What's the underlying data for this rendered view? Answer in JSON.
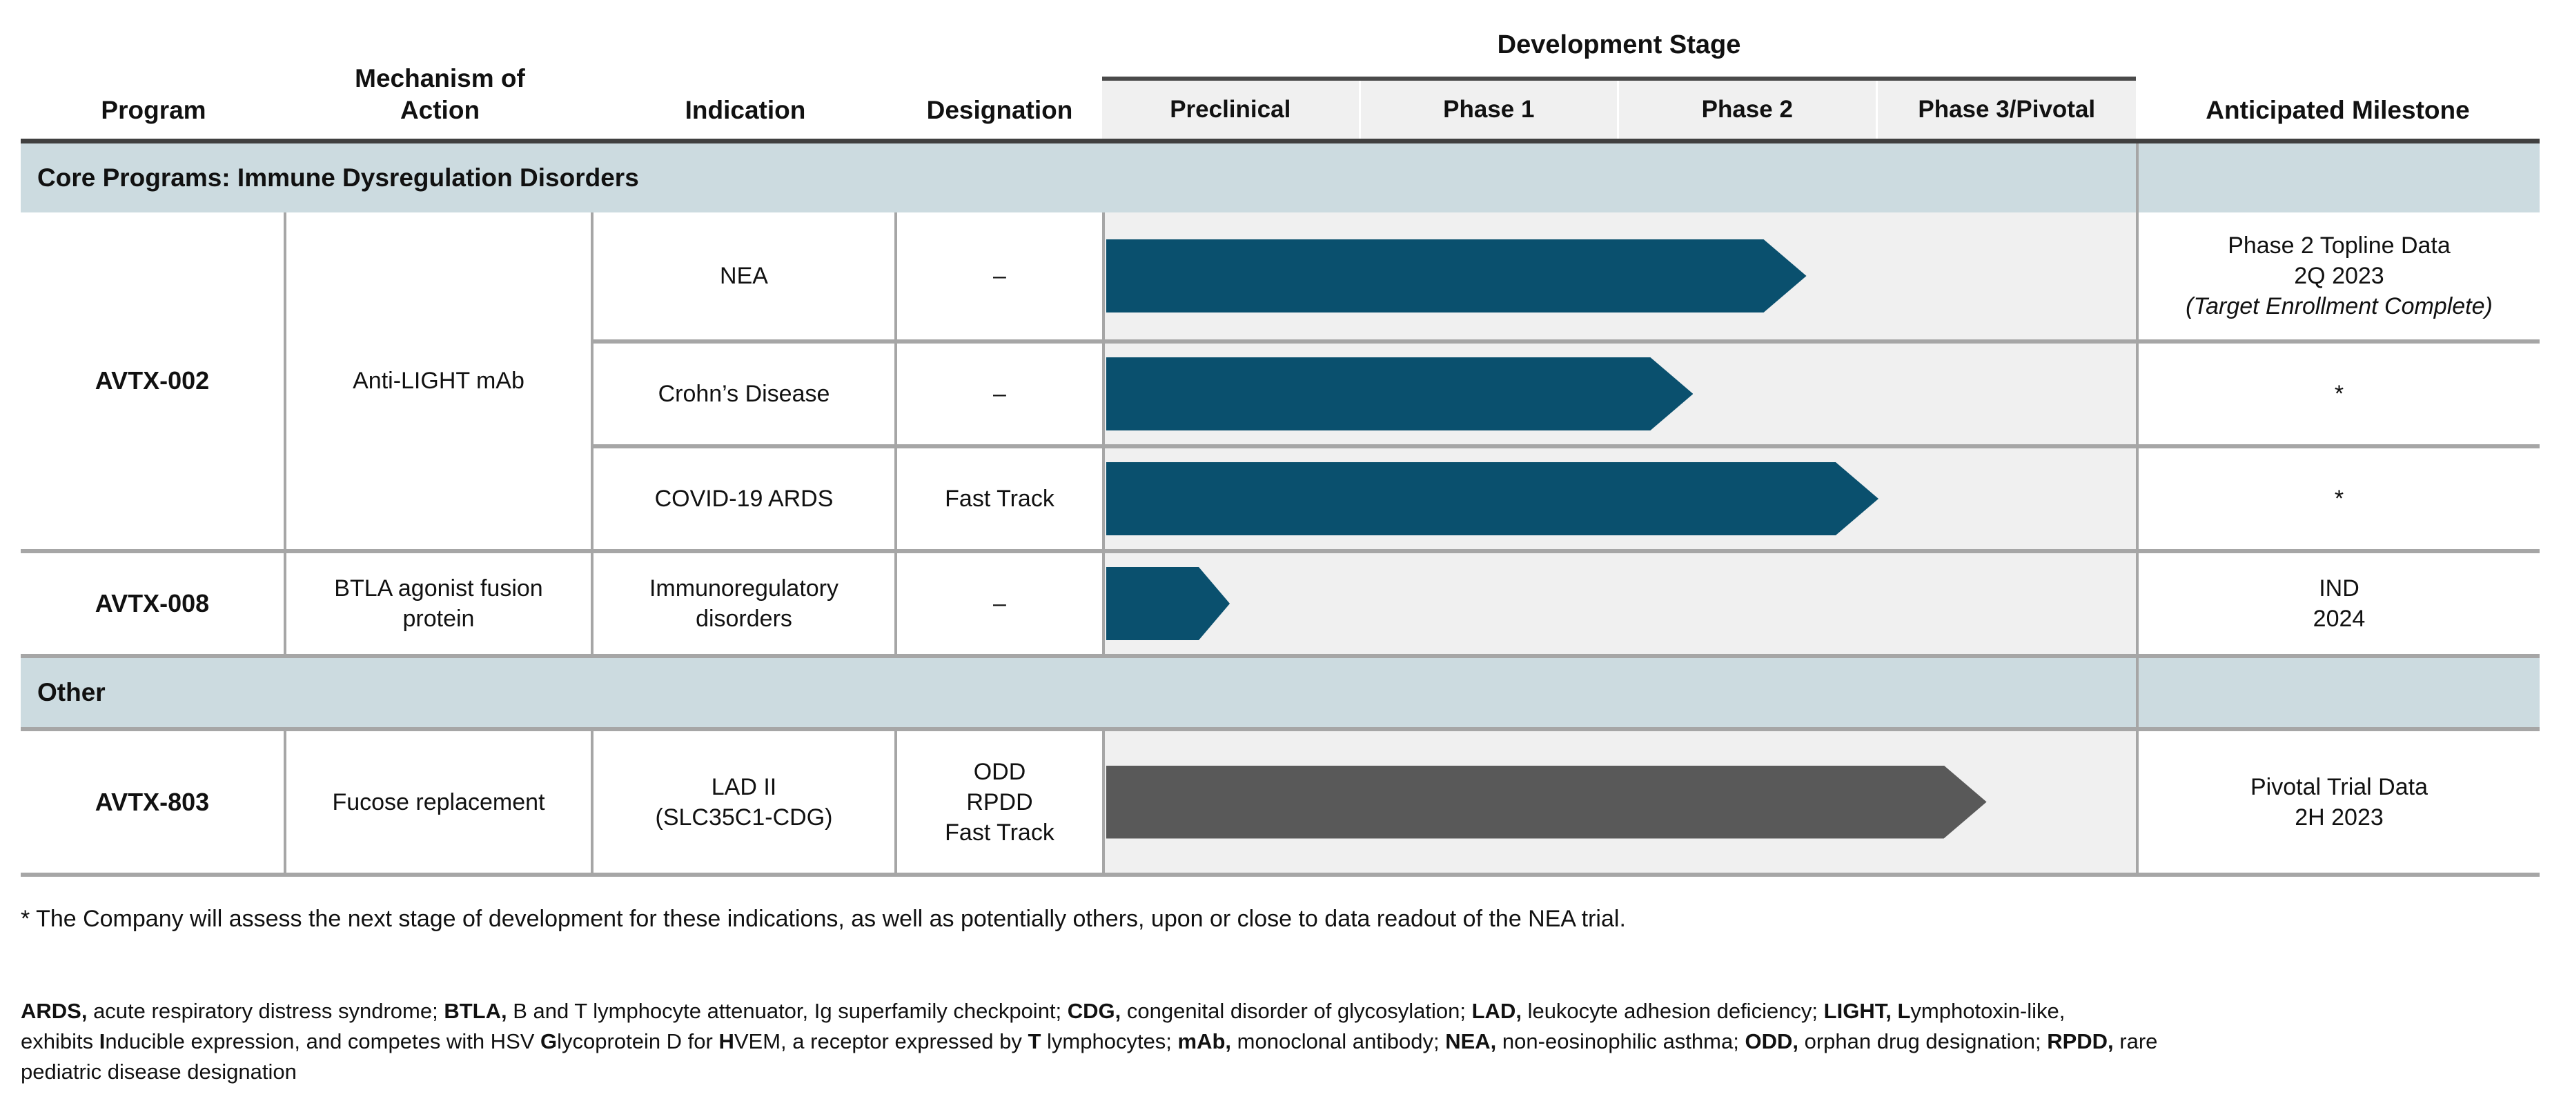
{
  "colors": {
    "teal": "#0a506e",
    "gray": "#595959",
    "band_bg": "#ccdbe0",
    "stage_bg": "#f0f0f0"
  },
  "header": {
    "development_stage": "Development Stage",
    "program": "Program",
    "mechanism_lines": [
      "Mechanism of",
      "Action"
    ],
    "indication": "Indication",
    "designation": "Designation",
    "phases": [
      "Preclinical",
      "Phase 1",
      "Phase 2",
      "Phase 3/Pivotal"
    ],
    "milestone": "Anticipated Milestone"
  },
  "sections": {
    "core": {
      "title": "Core Programs: Immune Dysregulation Disorders"
    },
    "other": {
      "title": "Other"
    }
  },
  "programs": {
    "avtx002": {
      "name": "AVTX-002",
      "mechanism": "Anti-LIGHT mAb",
      "rows": [
        {
          "indication": "NEA",
          "designation": "–",
          "progress_pct": 68,
          "milestone_lines": [
            "Phase 2 Topline Data",
            "2Q 2023"
          ],
          "milestone_note": "(Target Enrollment Complete)"
        },
        {
          "indication": "Crohn’s Disease",
          "designation": "–",
          "progress_pct": 57,
          "milestone_lines": [
            "*"
          ]
        },
        {
          "indication": "COVID-19 ARDS",
          "designation": "Fast Track",
          "progress_pct": 75,
          "milestone_lines": [
            "*"
          ]
        }
      ]
    },
    "avtx008": {
      "name": "AVTX-008",
      "mechanism_lines": [
        "BTLA agonist fusion",
        "protein"
      ],
      "indication_lines": [
        "Immunoregulatory",
        "disorders"
      ],
      "designation": "–",
      "progress_pct": 12,
      "milestone_lines": [
        "IND",
        "2024"
      ]
    },
    "avtx803": {
      "name": "AVTX-803",
      "mechanism": "Fucose replacement",
      "indication_lines": [
        "LAD II",
        "(SLC35C1-CDG)"
      ],
      "designation_lines": [
        "ODD",
        "RPDD",
        "Fast Track"
      ],
      "progress_pct": 85.5,
      "milestone_lines": [
        "Pivotal Trial Data",
        "2H 2023"
      ]
    }
  },
  "footnote": "* The Company will assess the next stage of development for these indications, as well as potentially others, upon or close to data readout of the NEA trial.",
  "abbreviations": {
    "lines": [
      [
        {
          "t": "ARDS,",
          "b": true
        },
        {
          "t": " acute respiratory distress syndrome; "
        },
        {
          "t": "BTLA,",
          "b": true
        },
        {
          "t": " B and T lymphocyte attenuator, Ig superfamily checkpoint; "
        },
        {
          "t": "CDG,",
          "b": true
        },
        {
          "t": " congenital disorder of glycosylation; "
        },
        {
          "t": "LAD,",
          "b": true
        },
        {
          "t": " leukocyte adhesion deficiency; "
        },
        {
          "t": "LIGHT,",
          "b": true
        },
        {
          "t": " "
        },
        {
          "t": "L",
          "b": true
        },
        {
          "t": "ymphotoxin-like,"
        }
      ],
      [
        {
          "t": "exhibits "
        },
        {
          "t": "I",
          "b": true
        },
        {
          "t": "nducible expression, and competes with HSV "
        },
        {
          "t": "G",
          "b": true
        },
        {
          "t": "lycoprotein D for "
        },
        {
          "t": "H",
          "b": true
        },
        {
          "t": "VEM, a receptor expressed by "
        },
        {
          "t": "T",
          "b": true
        },
        {
          "t": " lymphocytes; "
        },
        {
          "t": "mAb,",
          "b": true
        },
        {
          "t": " monoclonal antibody; "
        },
        {
          "t": "NEA,",
          "b": true
        },
        {
          "t": " non-eosinophilic asthma; "
        },
        {
          "t": "ODD,",
          "b": true
        },
        {
          "t": " orphan drug designation; "
        },
        {
          "t": "RPDD,",
          "b": true
        },
        {
          "t": " rare"
        }
      ],
      [
        {
          "t": "pediatric disease designation"
        }
      ]
    ]
  }
}
